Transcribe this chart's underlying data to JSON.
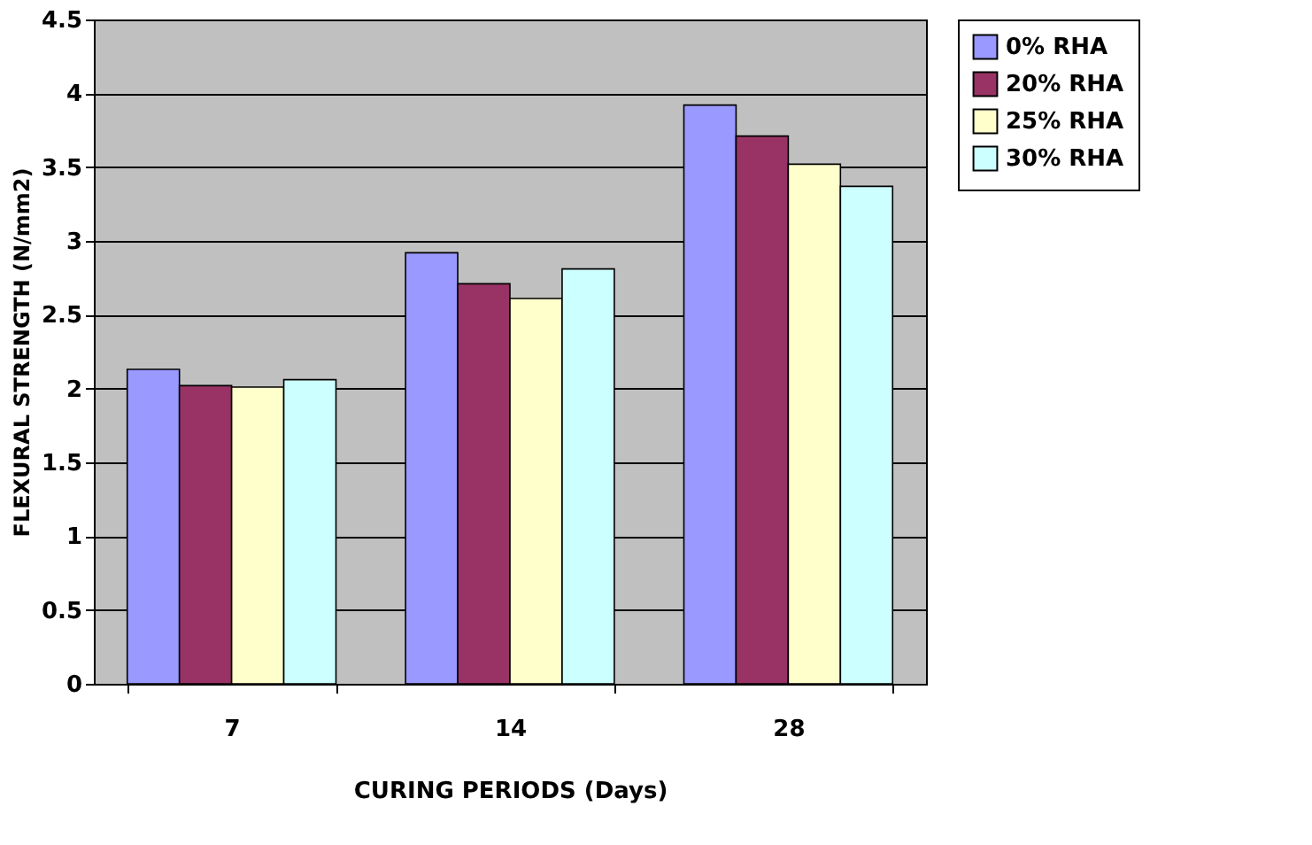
{
  "chart_data": {
    "type": "bar",
    "xlabel": "CURING PERIODS (Days)",
    "ylabel": "FLEXURAL STRENGTH (N/mm2)",
    "categories": [
      "7",
      "14",
      "28"
    ],
    "series": [
      {
        "name": "0% RHA",
        "color": "#9999ff",
        "values": [
          2.13,
          2.92,
          3.92
        ]
      },
      {
        "name": "20% RHA",
        "color": "#993366",
        "values": [
          2.02,
          2.71,
          3.71
        ]
      },
      {
        "name": "25% RHA",
        "color": "#ffffcc",
        "values": [
          2.01,
          2.61,
          3.52
        ]
      },
      {
        "name": "30% RHA",
        "color": "#ccffff",
        "values": [
          2.06,
          2.81,
          3.37
        ]
      }
    ],
    "ylim": [
      0,
      4.5
    ],
    "yticks": [
      0,
      0.5,
      1,
      1.5,
      2,
      2.5,
      3,
      3.5,
      4,
      4.5
    ],
    "grid": "y",
    "legend": "right"
  }
}
